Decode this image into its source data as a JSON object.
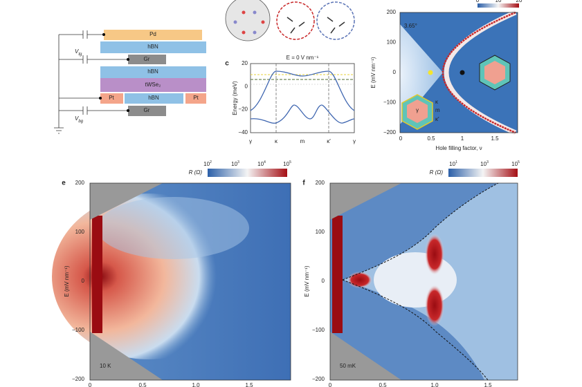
{
  "panel_a": {
    "layers": [
      "Pd",
      "hBN",
      "Gr",
      "hBN",
      "tWSe₂",
      "hBN",
      "Pt",
      "Pt",
      "Gr"
    ],
    "top_gate": {
      "symbol": "V",
      "subscript": "tg"
    },
    "bottom_gate": {
      "symbol": "V",
      "subscript": "bg"
    }
  },
  "panel_c": {
    "label": "c",
    "title": "E = 0 V nm⁻¹",
    "y_label": "Energy (meV)",
    "yticks": [
      "20",
      "0",
      "−20",
      "−40"
    ],
    "xticks": [
      "γ",
      "κ",
      "m",
      "κ′",
      "γ"
    ]
  },
  "panel_d": {
    "colorbar_ticks": [
      "0",
      "10",
      "20"
    ],
    "angle": "3.65°",
    "y_label": "E (mV nm⁻¹)",
    "yticks": [
      "200",
      "100",
      "0",
      "−100",
      "−200"
    ],
    "xticks": [
      "0",
      "0.5",
      "1",
      "1.5"
    ],
    "x_label": "Hole filling factor, ν",
    "inset_labels": [
      "κ",
      "m",
      "κ′",
      "γ"
    ]
  },
  "panel_e": {
    "label": "e",
    "colorbar_label": "R (Ω)",
    "colorbar_ticks": [
      {
        "base": "10",
        "exp": "2"
      },
      {
        "base": "10",
        "exp": "3"
      },
      {
        "base": "10",
        "exp": "4"
      },
      {
        "base": "10",
        "exp": "5"
      }
    ],
    "y_label": "E (mV nm⁻¹)",
    "yticks": [
      "200",
      "100",
      "0",
      "−100",
      "−200"
    ],
    "xticks": [
      "0",
      "0.5",
      "1.0",
      "1.5"
    ],
    "temperature": "10 K"
  },
  "panel_f": {
    "label": "f",
    "colorbar_label": "R (Ω)",
    "colorbar_ticks": [
      {
        "base": "10",
        "exp": "1"
      },
      {
        "base": "10",
        "exp": "3"
      },
      {
        "base": "10",
        "exp": "5"
      }
    ],
    "y_label": "E (mV nm⁻¹)",
    "yticks": [
      "200",
      "100",
      "0",
      "−100",
      "−200"
    ],
    "xticks": [
      "0",
      "0.5",
      "1.0",
      "1.5"
    ],
    "temperature": "50 mK"
  }
}
